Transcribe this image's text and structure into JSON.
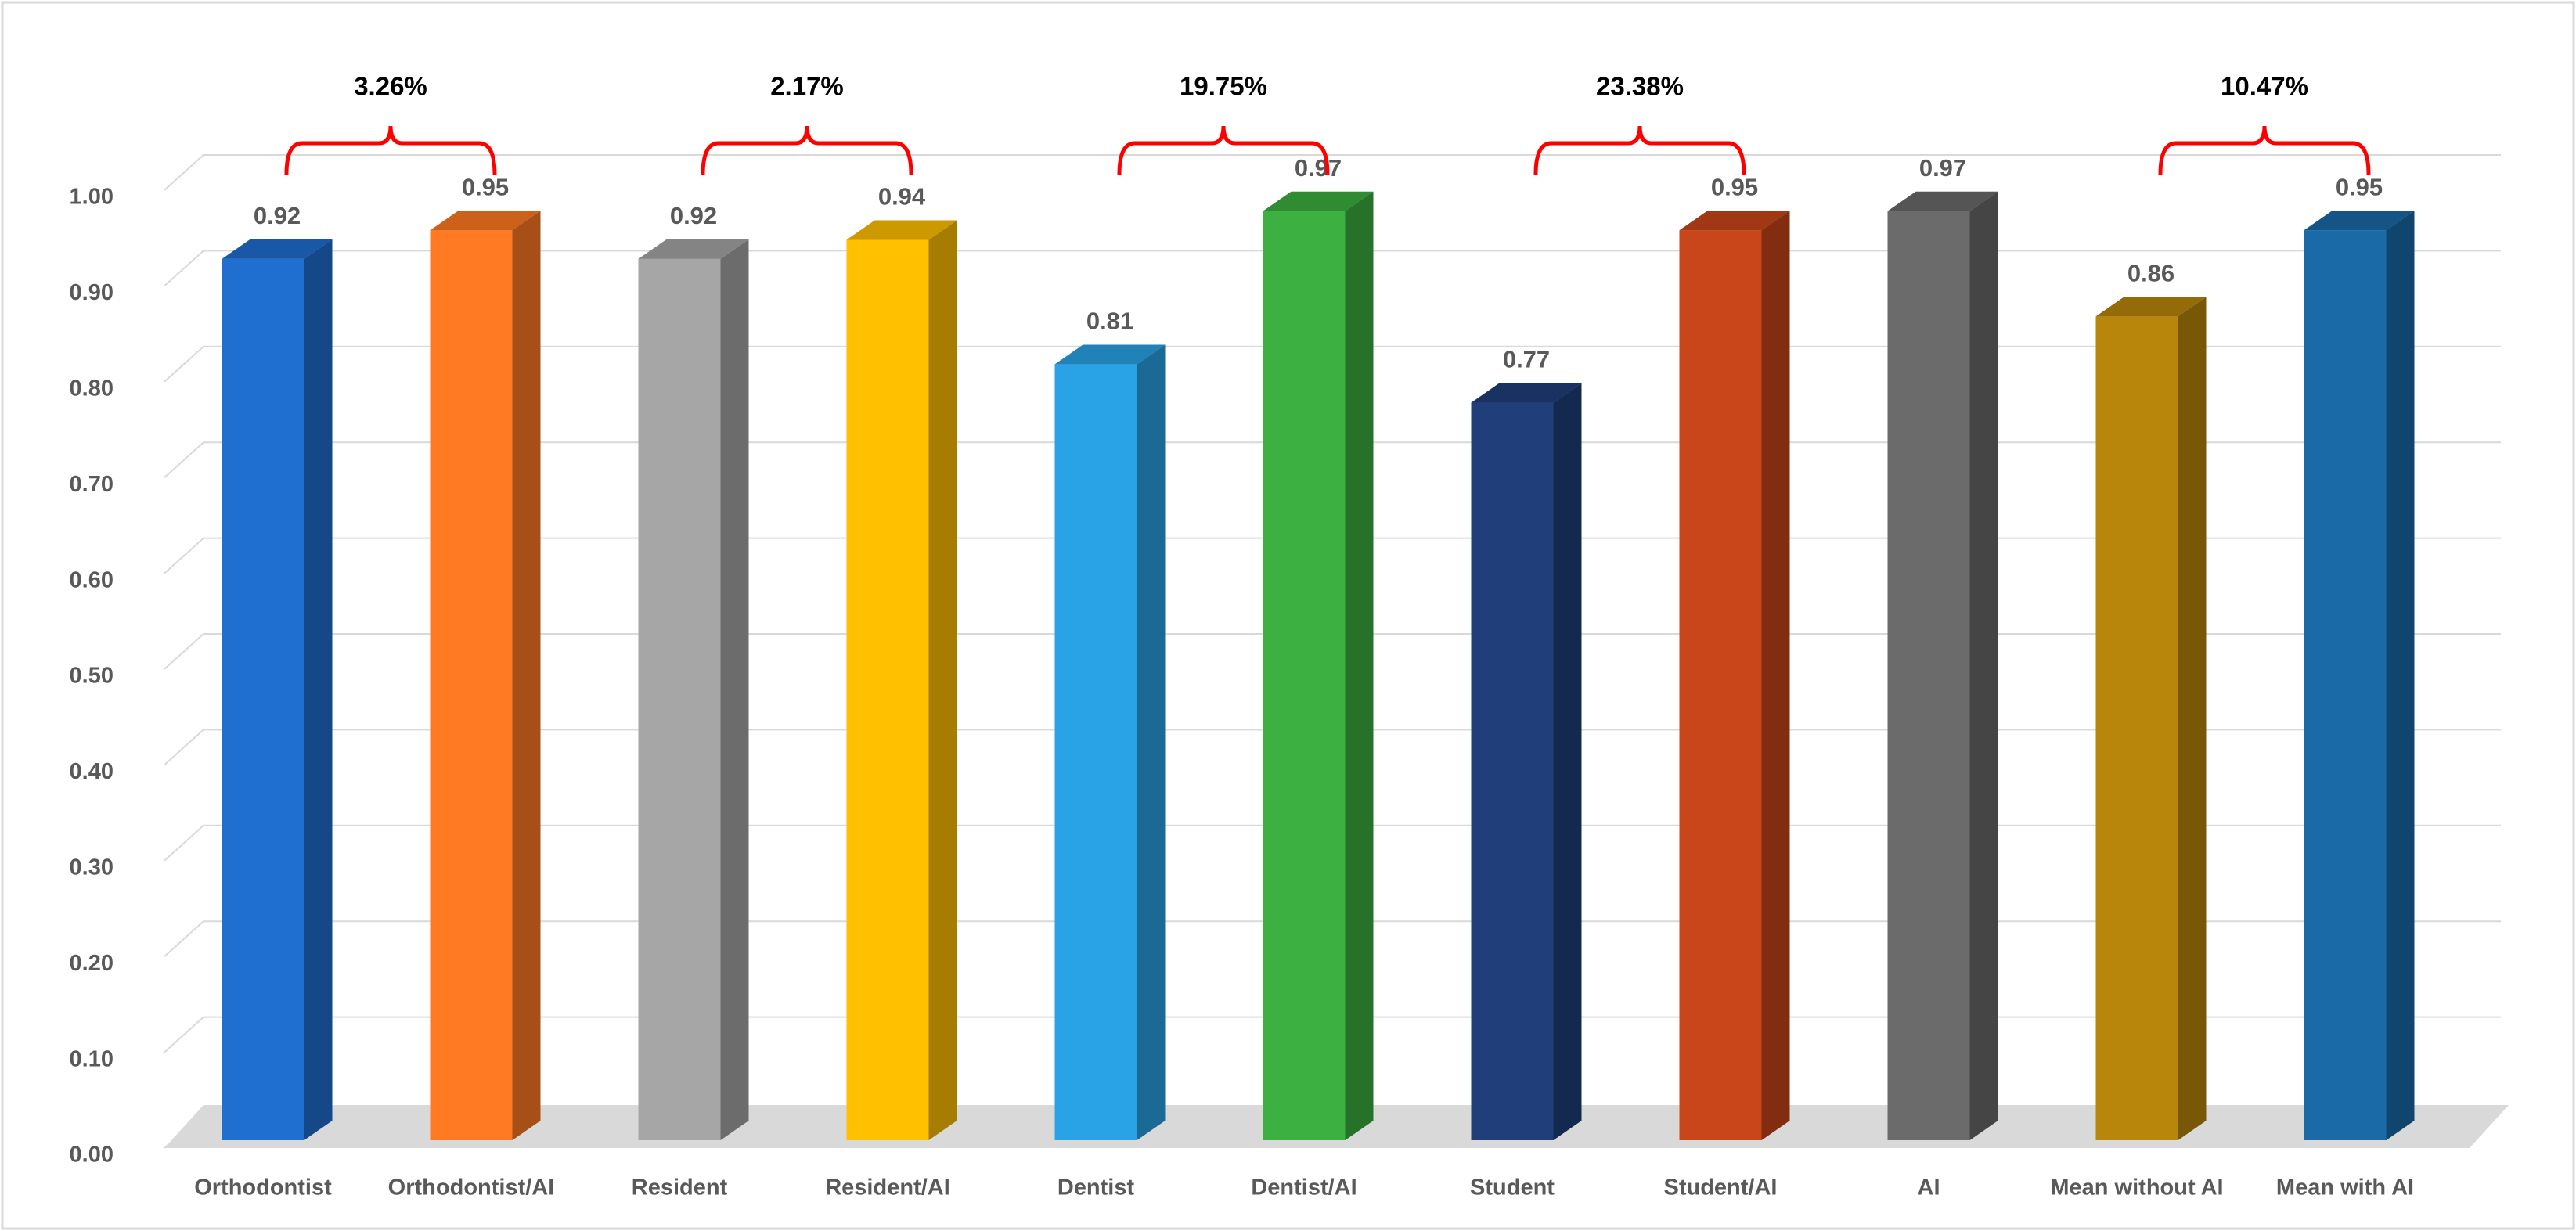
{
  "chart_data": {
    "type": "bar3d",
    "categories": [
      "Orthodontist",
      "Orthodontist/AI",
      "Resident",
      "Resident/AI",
      "Dentist",
      "Dentist/AI",
      "Student",
      "Student/AI",
      "AI",
      "Mean without AI",
      "Mean with AI"
    ],
    "values": [
      0.92,
      0.95,
      0.92,
      0.94,
      0.81,
      0.97,
      0.77,
      0.95,
      0.97,
      0.86,
      0.95
    ],
    "colors": [
      "#1f6fd1",
      "#ff7a22",
      "#a6a6a6",
      "#ffc000",
      "#2aa3e6",
      "#3cb040",
      "#203f7a",
      "#c8461a",
      "#6b6b6b",
      "#b8860b",
      "#1a6aa8"
    ],
    "ylim": [
      0,
      1
    ],
    "yticks": [
      {
        "value": 0,
        "label": "0.00"
      },
      {
        "value": 0.1,
        "label": "0.10"
      },
      {
        "value": 0.2,
        "label": "0.20"
      },
      {
        "value": 0.3,
        "label": "0.30"
      },
      {
        "value": 0.4,
        "label": "0.40"
      },
      {
        "value": 0.5,
        "label": "0.50"
      },
      {
        "value": 0.6,
        "label": "0.60"
      },
      {
        "value": 0.7,
        "label": "0.70"
      },
      {
        "value": 0.8,
        "label": "0.80"
      },
      {
        "value": 0.9,
        "label": "0.90"
      },
      {
        "value": 1,
        "label": "1.00"
      }
    ],
    "grid": true,
    "annotations": [
      "3.26%",
      "2.17%",
      "19.75%",
      "23.38%",
      "10.47%"
    ]
  }
}
